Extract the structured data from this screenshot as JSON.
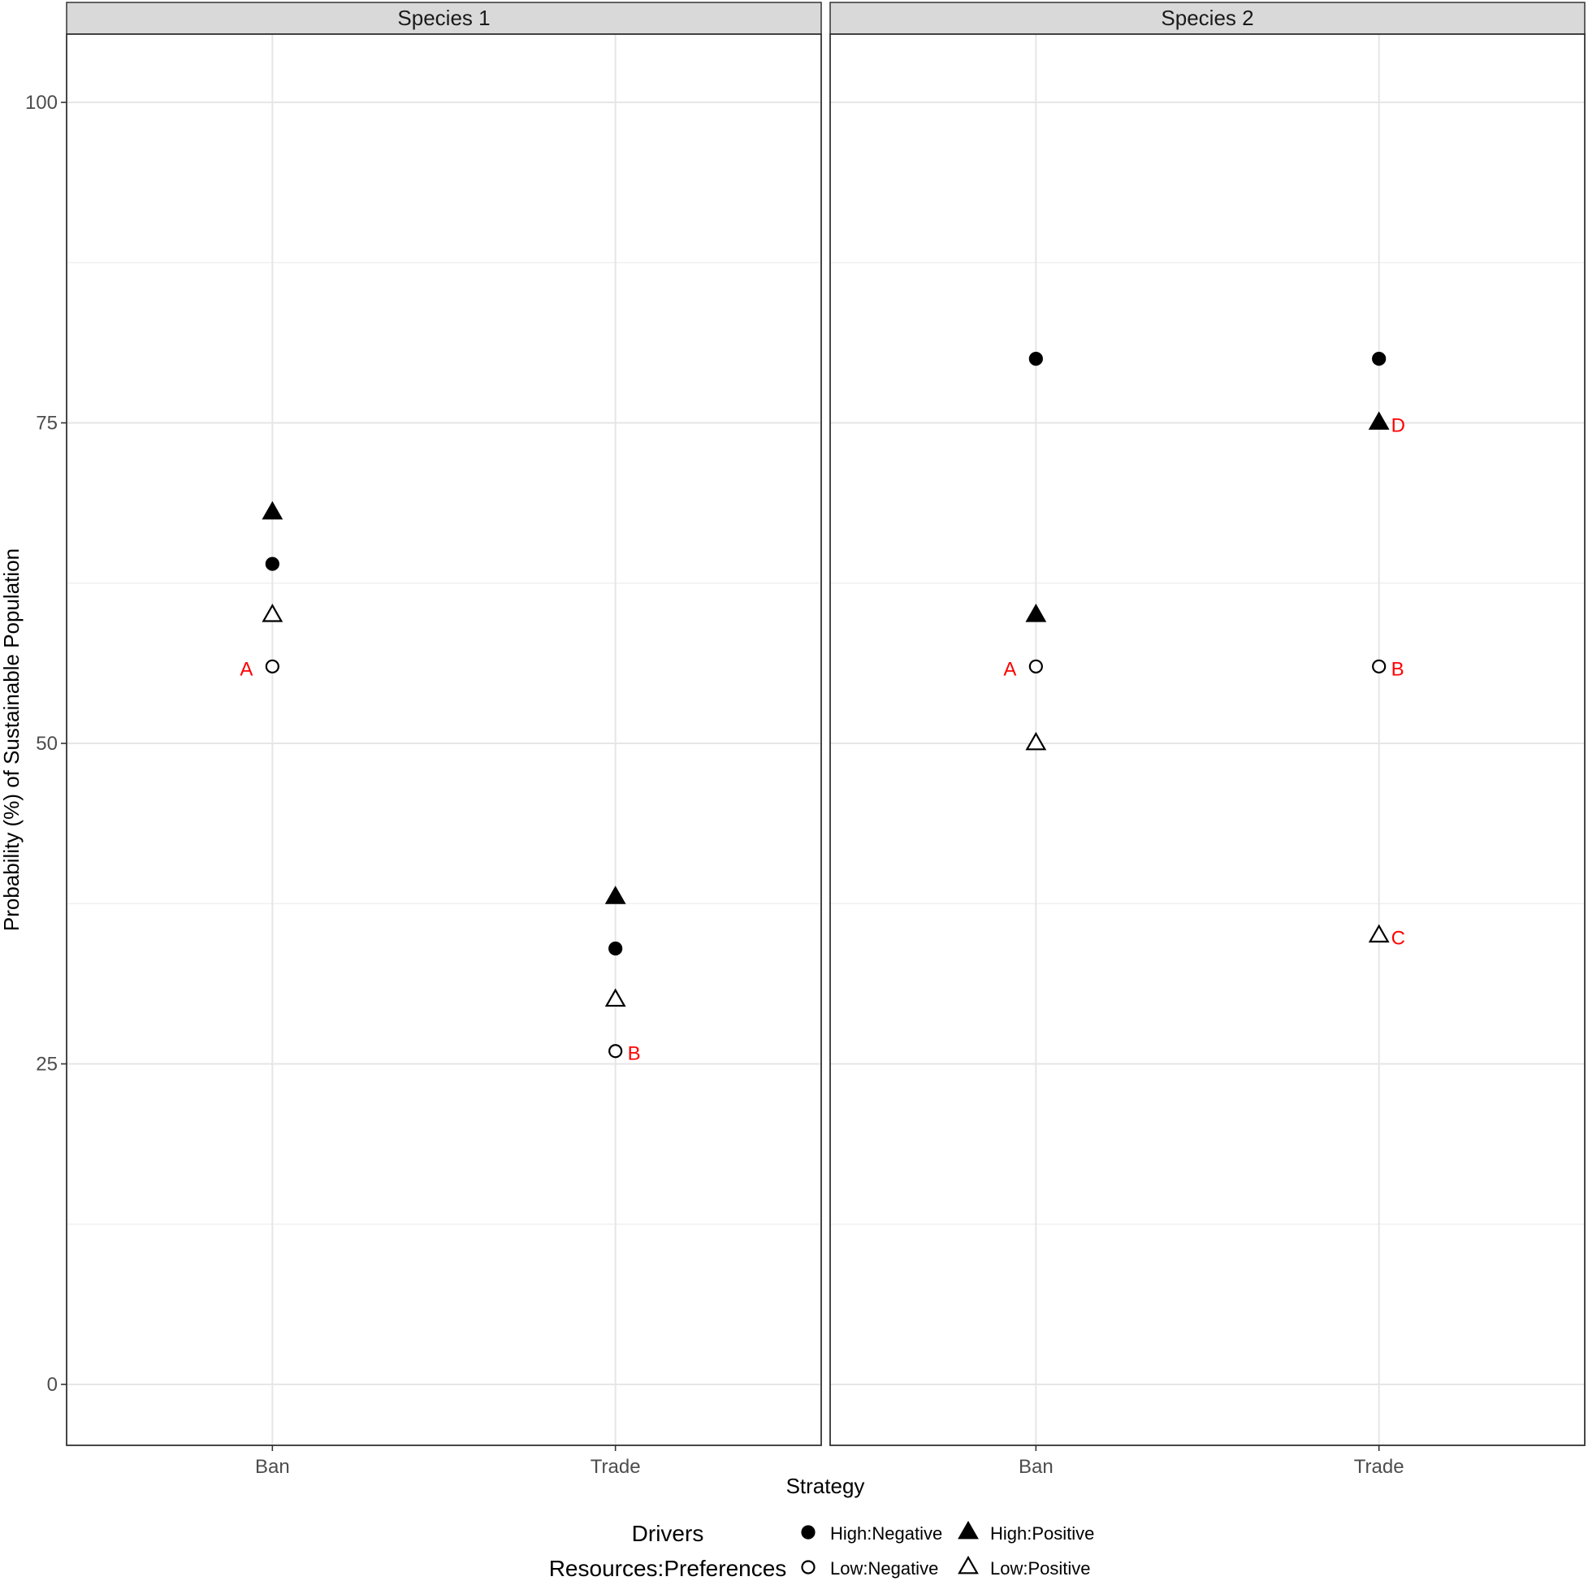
{
  "chart_data": {
    "type": "scatter",
    "ylabel": "Probability (%) of Sustainable Population",
    "xlabel": "Strategy",
    "categories": [
      "Ban",
      "Trade"
    ],
    "ylim": [
      -5,
      105
    ],
    "yticks": [
      0,
      25,
      50,
      75,
      100
    ],
    "grid": true,
    "legend": {
      "position": "bottom",
      "title_lines": [
        "Drivers",
        "Resources:Preferences"
      ],
      "entries": [
        {
          "key": "hn",
          "label": "High:Negative",
          "shape": "circle",
          "filled": true
        },
        {
          "key": "hp",
          "label": "High:Positive",
          "shape": "triangle",
          "filled": true
        },
        {
          "key": "ln",
          "label": "Low:Negative",
          "shape": "circle",
          "filled": false
        },
        {
          "key": "lp",
          "label": "Low:Positive",
          "shape": "triangle",
          "filled": false
        }
      ]
    },
    "annotation_color": "#ff0000",
    "panels": [
      {
        "title": "Species 1",
        "points": [
          {
            "x": "Ban",
            "series": "hp",
            "y": 68
          },
          {
            "x": "Ban",
            "series": "hn",
            "y": 64
          },
          {
            "x": "Ban",
            "series": "lp",
            "y": 60
          },
          {
            "x": "Ban",
            "series": "ln",
            "y": 56
          },
          {
            "x": "Trade",
            "series": "hp",
            "y": 38
          },
          {
            "x": "Trade",
            "series": "hn",
            "y": 34
          },
          {
            "x": "Trade",
            "series": "lp",
            "y": 30
          },
          {
            "x": "Trade",
            "series": "ln",
            "y": 26
          }
        ],
        "annotations": [
          {
            "text": "A",
            "x": "Ban",
            "y": 56,
            "side": "left"
          },
          {
            "text": "B",
            "x": "Trade",
            "y": 26,
            "side": "right"
          }
        ]
      },
      {
        "title": "Species 2",
        "points": [
          {
            "x": "Ban",
            "series": "hn",
            "y": 80
          },
          {
            "x": "Ban",
            "series": "hp",
            "y": 60
          },
          {
            "x": "Ban",
            "series": "ln",
            "y": 56
          },
          {
            "x": "Ban",
            "series": "lp",
            "y": 50
          },
          {
            "x": "Trade",
            "series": "hn",
            "y": 80
          },
          {
            "x": "Trade",
            "series": "hp",
            "y": 75
          },
          {
            "x": "Trade",
            "series": "ln",
            "y": 56
          },
          {
            "x": "Trade",
            "series": "lp",
            "y": 35
          }
        ],
        "annotations": [
          {
            "text": "A",
            "x": "Ban",
            "y": 56,
            "side": "left"
          },
          {
            "text": "D",
            "x": "Trade",
            "y": 75,
            "side": "right"
          },
          {
            "text": "B",
            "x": "Trade",
            "y": 56,
            "side": "right"
          },
          {
            "text": "C",
            "x": "Trade",
            "y": 35,
            "side": "right"
          }
        ]
      }
    ]
  }
}
